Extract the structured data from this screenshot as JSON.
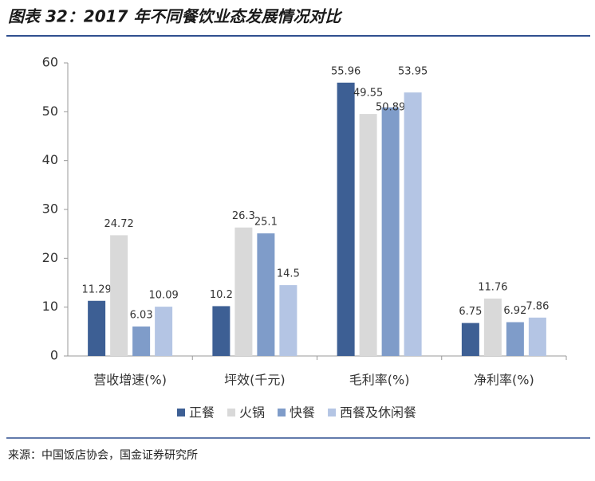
{
  "chart_data": {
    "type": "bar",
    "title": "图表 32：2017 年不同餐饮业态发展情况对比",
    "source": "来源：中国饭店协会，国金证券研究所",
    "categories": [
      "营收增速(%)",
      "坪效(千元)",
      "毛利率(%)",
      "净利率(%)"
    ],
    "series": [
      {
        "name": "正餐",
        "color": "#3d5f94",
        "values": [
          11.29,
          10.2,
          55.96,
          6.75
        ]
      },
      {
        "name": "火锅",
        "color": "#d9d9d9",
        "values": [
          24.72,
          26.3,
          49.55,
          11.76
        ]
      },
      {
        "name": "快餐",
        "color": "#7f9cc9",
        "values": [
          6.03,
          25.1,
          50.89,
          6.92
        ]
      },
      {
        "name": "西餐及休闲餐",
        "color": "#b4c5e4",
        "values": [
          10.09,
          14.5,
          53.95,
          7.86
        ]
      }
    ],
    "ylim": [
      0,
      60
    ],
    "yticks": [
      0,
      10,
      20,
      30,
      40,
      50,
      60
    ],
    "legend": "bottom"
  }
}
